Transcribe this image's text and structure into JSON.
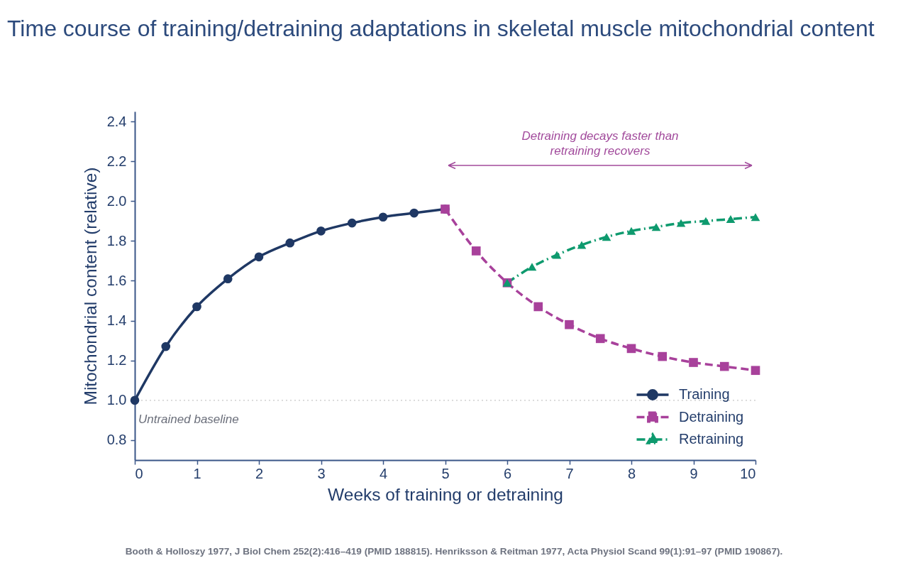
{
  "chart_data": {
    "type": "line",
    "title": "Time course of training/detraining adaptations in skeletal muscle mitochondrial content",
    "xlabel": "Weeks of training or detraining",
    "ylabel": "Mitochondrial content (relative)",
    "xlim": [
      0,
      10
    ],
    "xticks": [
      0,
      1,
      2,
      3,
      4,
      5,
      6,
      7,
      8,
      9,
      10
    ],
    "ylim": [
      0.7,
      2.45
    ],
    "yticks": [
      0.8,
      {
        "value": 1,
        "label": "1.0"
      },
      1.2,
      1.4,
      1.6,
      1.8,
      {
        "value": 2,
        "label": "2.0"
      },
      2.2,
      2.4
    ],
    "series": [
      {
        "name": "Training",
        "color": "#1f3864",
        "marker": "circle",
        "line_style": "solid",
        "x": [
          0,
          0.5,
          1,
          1.5,
          2,
          2.5,
          3,
          3.5,
          4,
          4.5,
          5
        ],
        "values": [
          1.0,
          1.27,
          1.47,
          1.61,
          1.72,
          1.79,
          1.85,
          1.89,
          1.92,
          1.94,
          1.96
        ]
      },
      {
        "name": "Detraining",
        "color": "#a8419b",
        "marker": "square",
        "line_style": "dashed",
        "x": [
          5,
          5.5,
          6,
          6.5,
          7,
          7.5,
          8,
          8.5,
          9,
          9.5,
          10
        ],
        "values": [
          1.96,
          1.75,
          1.59,
          1.47,
          1.38,
          1.31,
          1.26,
          1.22,
          1.19,
          1.17,
          1.15
        ]
      },
      {
        "name": "Retraining",
        "color": "#0e9a6e",
        "marker": "triangle",
        "line_style": "dashdot",
        "x": [
          6,
          6.4,
          6.8,
          7.2,
          7.6,
          8,
          8.4,
          8.8,
          9.2,
          9.6,
          10
        ],
        "values": [
          1.59,
          1.67,
          1.73,
          1.78,
          1.82,
          1.85,
          1.87,
          1.89,
          1.9,
          1.91,
          1.92
        ]
      }
    ],
    "legend": "bottom right",
    "ref_lines": [
      {
        "axis": "y",
        "value": 1,
        "label": "Untrained baseline",
        "color": "#c8c8c8",
        "line_style": "dotted"
      }
    ],
    "annotations": [
      "Detraining decays faster than\nretraining recovers",
      "Booth & Holloszy 1977, J Biol Chem 252(2):416–419 (PMID 188815). Henriksson & Reitman 1977, Acta Physiol Scand 99(1):91–97 (PMID 190867)."
    ]
  }
}
